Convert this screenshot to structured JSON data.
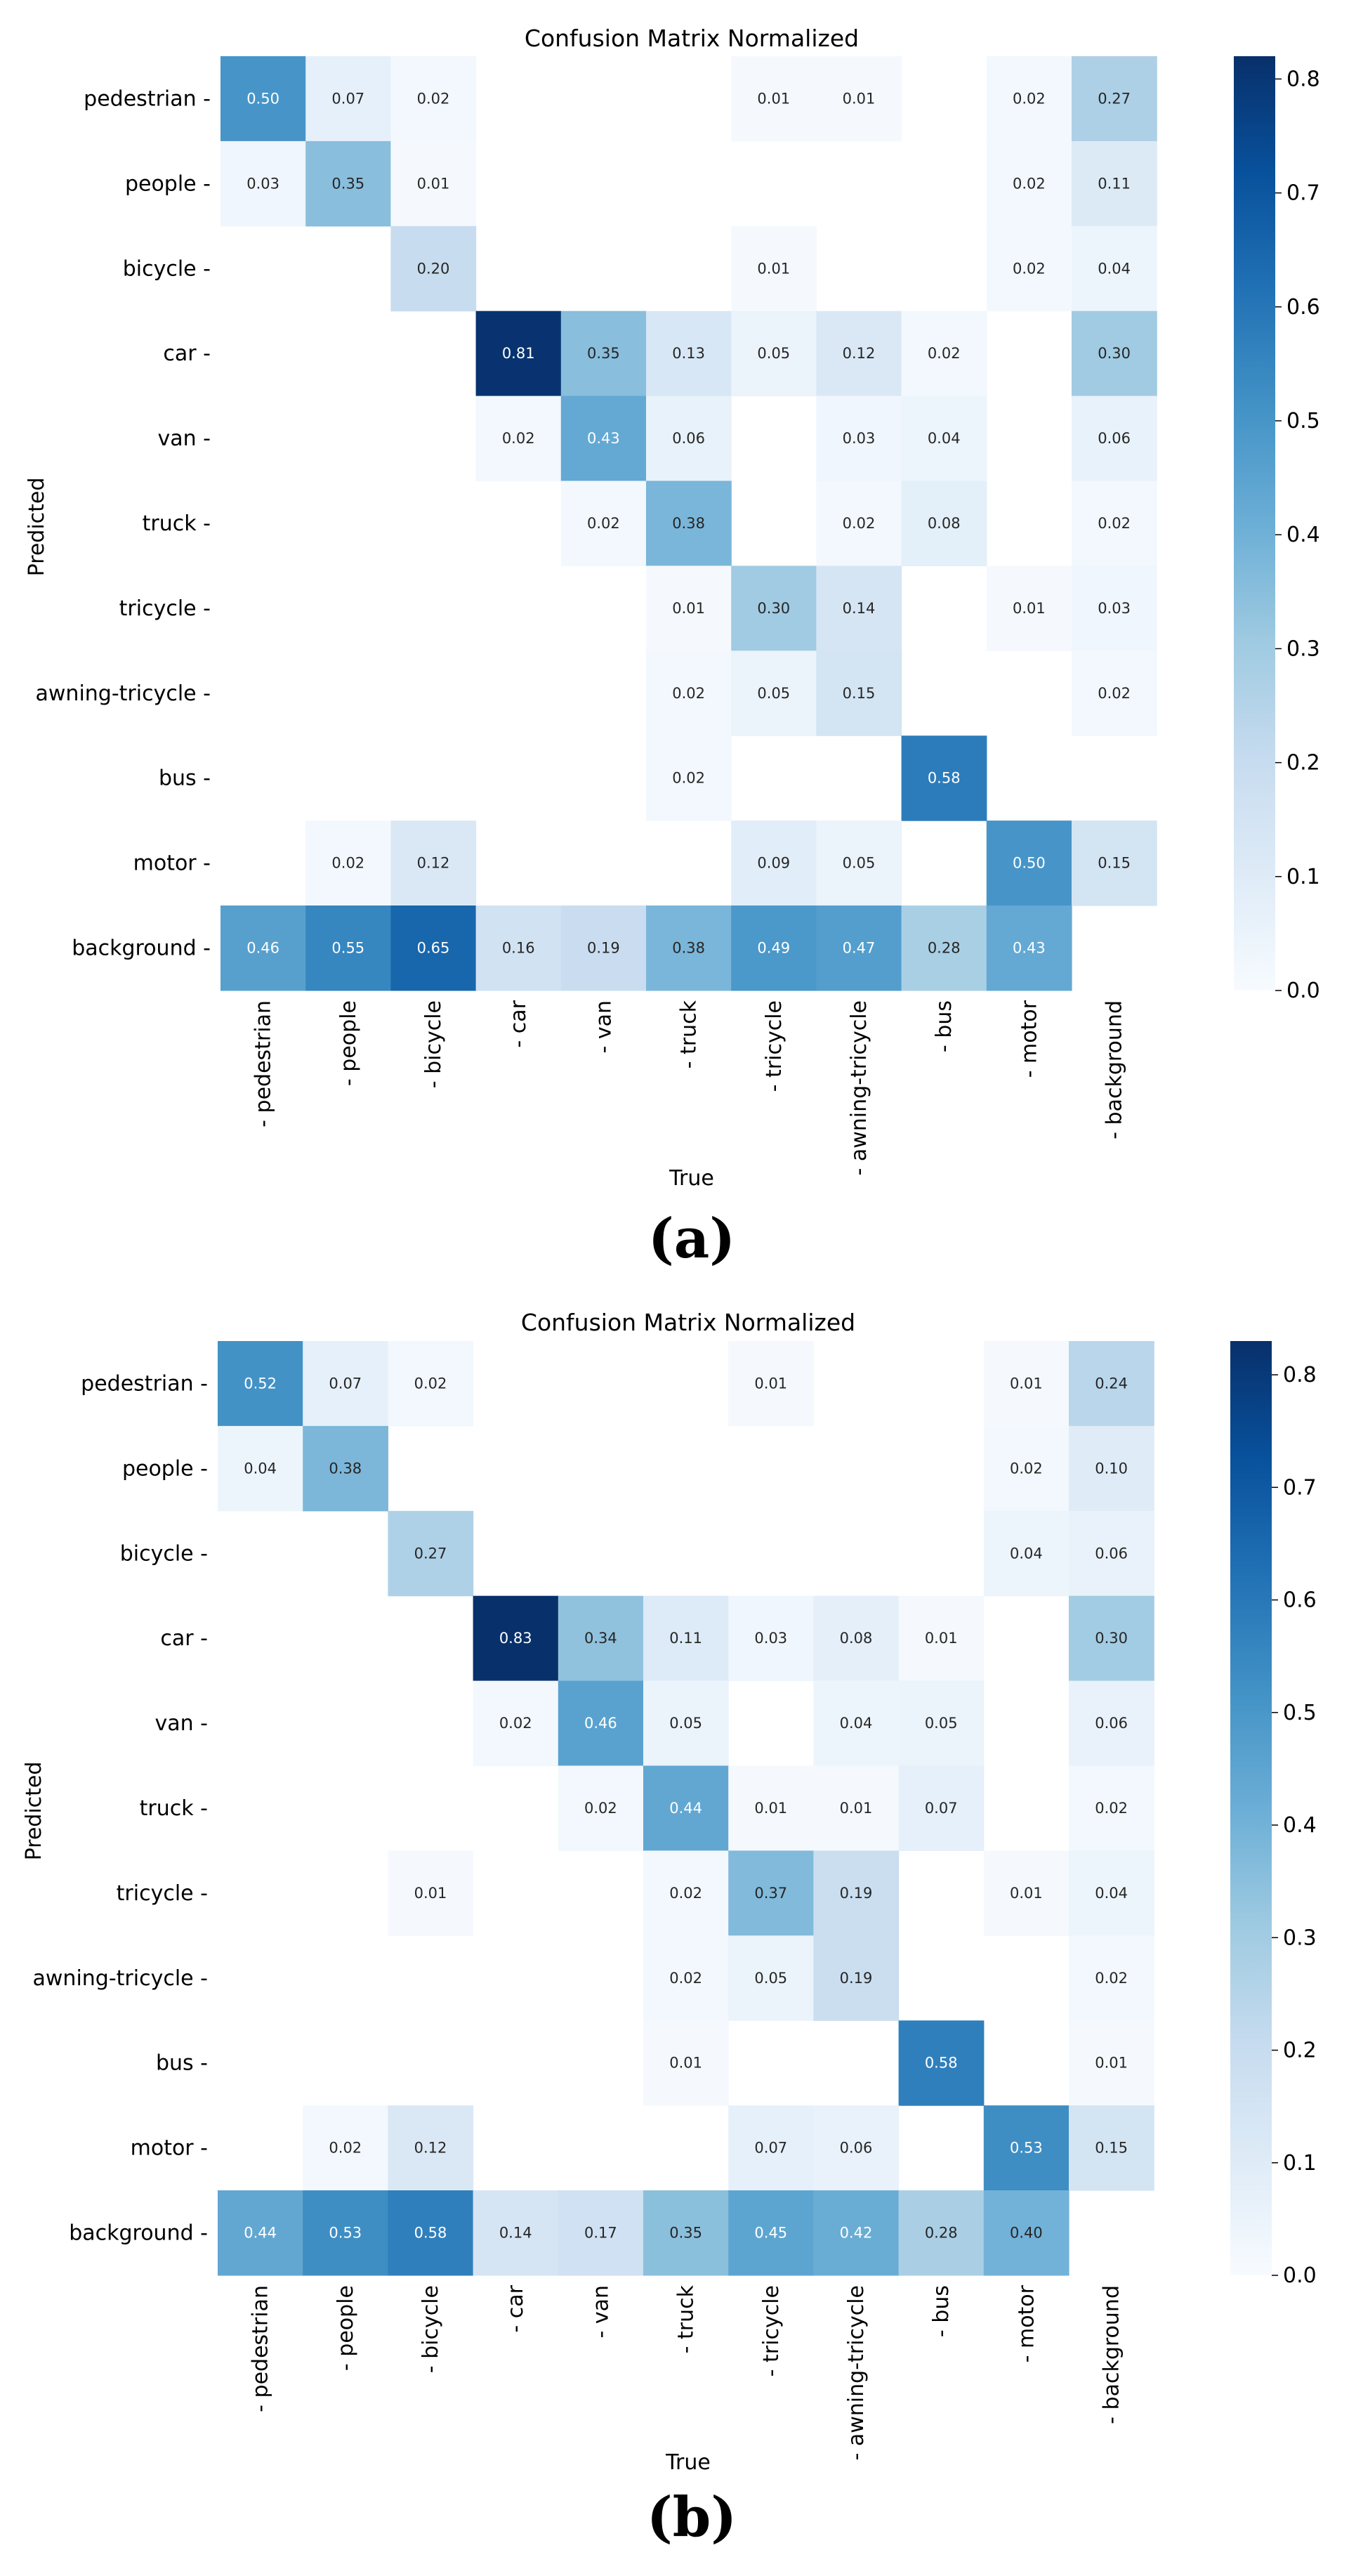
{
  "chart_data": [
    {
      "type": "heatmap",
      "caption": "(a)",
      "title": "Confusion Matrix Normalized",
      "xlabel": "True",
      "ylabel": "Predicted",
      "labels": [
        "pedestrian",
        "people",
        "bicycle",
        "car",
        "van",
        "truck",
        "tricycle",
        "awning-tricycle",
        "bus",
        "motor",
        "background"
      ],
      "tick_mark": "-",
      "colorbar": {
        "min": 0.0,
        "max": 0.82,
        "ticks": [
          0.0,
          0.1,
          0.2,
          0.3,
          0.4,
          0.5,
          0.6,
          0.7,
          0.8
        ],
        "tick_labels": [
          "0.0",
          "0.1",
          "0.2",
          "0.3",
          "0.4",
          "0.5",
          "0.6",
          "0.7",
          "0.8"
        ]
      },
      "matrix": [
        [
          0.5,
          0.07,
          0.02,
          null,
          null,
          null,
          0.01,
          0.01,
          null,
          0.02,
          0.27
        ],
        [
          0.03,
          0.35,
          0.01,
          null,
          null,
          null,
          null,
          null,
          null,
          0.02,
          0.11
        ],
        [
          null,
          null,
          0.2,
          null,
          null,
          null,
          0.01,
          null,
          null,
          0.02,
          0.04
        ],
        [
          null,
          null,
          null,
          0.81,
          0.35,
          0.13,
          0.05,
          0.12,
          0.02,
          null,
          0.3
        ],
        [
          null,
          null,
          null,
          0.02,
          0.43,
          0.06,
          null,
          0.03,
          0.04,
          null,
          0.06
        ],
        [
          null,
          null,
          null,
          null,
          0.02,
          0.38,
          null,
          0.02,
          0.08,
          null,
          0.02
        ],
        [
          null,
          null,
          null,
          null,
          null,
          0.01,
          0.3,
          0.14,
          null,
          0.01,
          0.03
        ],
        [
          null,
          null,
          null,
          null,
          null,
          0.02,
          0.05,
          0.15,
          null,
          null,
          0.02
        ],
        [
          null,
          null,
          null,
          null,
          null,
          0.02,
          null,
          null,
          0.58,
          null,
          null
        ],
        [
          null,
          0.02,
          0.12,
          null,
          null,
          null,
          0.09,
          0.05,
          null,
          0.5,
          0.15
        ],
        [
          0.46,
          0.55,
          0.65,
          0.16,
          0.19,
          0.38,
          0.49,
          0.47,
          0.28,
          0.43,
          null
        ]
      ]
    },
    {
      "type": "heatmap",
      "caption": "(b)",
      "title": "Confusion Matrix Normalized",
      "xlabel": "True",
      "ylabel": "Predicted",
      "labels": [
        "pedestrian",
        "people",
        "bicycle",
        "car",
        "van",
        "truck",
        "tricycle",
        "awning-tricycle",
        "bus",
        "motor",
        "background"
      ],
      "tick_mark": "-",
      "colorbar": {
        "min": 0.0,
        "max": 0.83,
        "ticks": [
          0.0,
          0.1,
          0.2,
          0.3,
          0.4,
          0.5,
          0.6,
          0.7,
          0.8
        ],
        "tick_labels": [
          "0.0",
          "0.1",
          "0.2",
          "0.3",
          "0.4",
          "0.5",
          "0.6",
          "0.7",
          "0.8"
        ]
      },
      "matrix": [
        [
          0.52,
          0.07,
          0.02,
          null,
          null,
          null,
          0.01,
          null,
          null,
          0.01,
          0.24
        ],
        [
          0.04,
          0.38,
          null,
          null,
          null,
          null,
          null,
          null,
          null,
          0.02,
          0.1
        ],
        [
          null,
          null,
          0.27,
          null,
          null,
          null,
          null,
          null,
          null,
          0.04,
          0.06
        ],
        [
          null,
          null,
          null,
          0.83,
          0.34,
          0.11,
          0.03,
          0.08,
          0.01,
          null,
          0.3
        ],
        [
          null,
          null,
          null,
          0.02,
          0.46,
          0.05,
          null,
          0.04,
          0.05,
          null,
          0.06
        ],
        [
          null,
          null,
          null,
          null,
          0.02,
          0.44,
          0.01,
          0.01,
          0.07,
          null,
          0.02
        ],
        [
          null,
          null,
          0.01,
          null,
          null,
          0.02,
          0.37,
          0.19,
          null,
          0.01,
          0.04
        ],
        [
          null,
          null,
          null,
          null,
          null,
          0.02,
          0.05,
          0.19,
          null,
          null,
          0.02
        ],
        [
          null,
          null,
          null,
          null,
          null,
          0.01,
          null,
          null,
          0.58,
          null,
          0.01
        ],
        [
          null,
          0.02,
          0.12,
          null,
          null,
          null,
          0.07,
          0.06,
          null,
          0.53,
          0.15
        ],
        [
          0.44,
          0.53,
          0.58,
          0.14,
          0.17,
          0.35,
          0.45,
          0.42,
          0.28,
          0.4,
          null
        ]
      ]
    }
  ]
}
